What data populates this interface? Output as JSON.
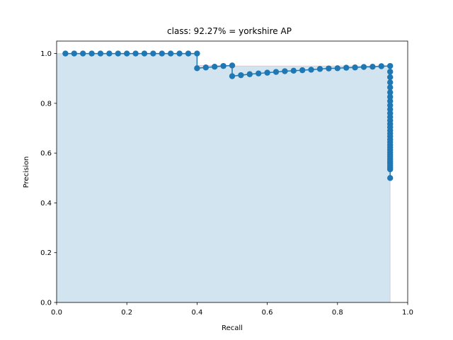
{
  "chart_data": {
    "type": "line",
    "title": "class: 92.27% = yorkshire AP",
    "xlabel": "Recall",
    "ylabel": "Precision",
    "xlim": [
      0.0,
      1.0
    ],
    "ylim": [
      0.0,
      1.05
    ],
    "xticks": [
      "0.0",
      "0.2",
      "0.4",
      "0.6",
      "0.8",
      "1.0"
    ],
    "yticks": [
      "0.0",
      "0.2",
      "0.4",
      "0.6",
      "0.8",
      "1.0"
    ],
    "grid": false,
    "legend": "none",
    "colors": {
      "line": "#1f77b4",
      "fill": "#1f77b4",
      "interp": "#d62728"
    },
    "series": [
      {
        "x": [
          0.025,
          0.05,
          0.075,
          0.1,
          0.125,
          0.15,
          0.175,
          0.2,
          0.225,
          0.25,
          0.275,
          0.3,
          0.325,
          0.35,
          0.375,
          0.4,
          0.4,
          0.425,
          0.45,
          0.475,
          0.5,
          0.5,
          0.525,
          0.55,
          0.575,
          0.6,
          0.625,
          0.65,
          0.675,
          0.7,
          0.725,
          0.75,
          0.775,
          0.8,
          0.825,
          0.85,
          0.875,
          0.9,
          0.925,
          0.95,
          0.95,
          0.95,
          0.95,
          0.95,
          0.95,
          0.95,
          0.95,
          0.95,
          0.95,
          0.95,
          0.95,
          0.95,
          0.95,
          0.95,
          0.95,
          0.95,
          0.95,
          0.95,
          0.95,
          0.95,
          0.95,
          0.95,
          0.95,
          0.95,
          0.95,
          0.95,
          0.95,
          0.95,
          0.95,
          0.95,
          0.95,
          0.95
        ],
        "y": [
          1.0,
          1.0,
          1.0,
          1.0,
          1.0,
          1.0,
          1.0,
          1.0,
          1.0,
          1.0,
          1.0,
          1.0,
          1.0,
          1.0,
          1.0,
          1.0,
          0.941,
          0.944,
          0.947,
          0.95,
          0.952,
          0.909,
          0.913,
          0.917,
          0.92,
          0.923,
          0.926,
          0.929,
          0.931,
          0.933,
          0.935,
          0.938,
          0.94,
          0.941,
          0.943,
          0.944,
          0.946,
          0.947,
          0.949,
          0.95,
          0.927,
          0.905,
          0.884,
          0.864,
          0.844,
          0.826,
          0.809,
          0.792,
          0.776,
          0.76,
          0.745,
          0.731,
          0.717,
          0.704,
          0.691,
          0.679,
          0.667,
          0.655,
          0.644,
          0.633,
          0.623,
          0.613,
          0.603,
          0.594,
          0.585,
          0.576,
          0.567,
          0.559,
          0.551,
          0.543,
          0.535,
          0.5
        ]
      }
    ],
    "interpolated": {
      "x": [
        0.0,
        0.025,
        0.4,
        0.4,
        0.5,
        0.5,
        0.95,
        0.95,
        0.95
      ],
      "y": [
        1.0,
        1.0,
        1.0,
        0.952,
        0.952,
        0.95,
        0.95,
        0.5,
        0.0
      ]
    }
  }
}
